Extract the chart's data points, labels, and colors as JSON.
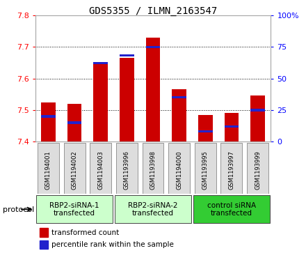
{
  "title": "GDS5355 / ILMN_2163547",
  "samples": [
    "GSM1194001",
    "GSM1194002",
    "GSM1194003",
    "GSM1193996",
    "GSM1193998",
    "GSM1194000",
    "GSM1193995",
    "GSM1193997",
    "GSM1193999"
  ],
  "transformed_count": [
    7.525,
    7.52,
    7.645,
    7.665,
    7.73,
    7.565,
    7.485,
    7.49,
    7.545
  ],
  "percentile_rank": [
    20,
    15,
    62,
    68,
    75,
    35,
    8,
    12,
    25
  ],
  "ylim_left": [
    7.4,
    7.8
  ],
  "ylim_right": [
    0,
    100
  ],
  "yticks_left": [
    7.4,
    7.5,
    7.6,
    7.7,
    7.8
  ],
  "yticks_right": [
    0,
    25,
    50,
    75,
    100
  ],
  "bar_color_red": "#cc0000",
  "bar_color_blue": "#2222cc",
  "groups": [
    {
      "label": "RBP2-siRNA-1\ntransfected",
      "start": 0,
      "end": 3,
      "color": "#ccffcc"
    },
    {
      "label": "RBP2-siRNA-2\ntransfected",
      "start": 3,
      "end": 6,
      "color": "#ccffcc"
    },
    {
      "label": "control siRNA\ntransfected",
      "start": 6,
      "end": 9,
      "color": "#33cc33"
    }
  ],
  "protocol_label": "protocol",
  "legend_items": [
    {
      "color": "#cc0000",
      "label": "transformed count"
    },
    {
      "color": "#2222cc",
      "label": "percentile rank within the sample"
    }
  ],
  "sample_box_color": "#dddddd",
  "plot_bg": "#ffffff",
  "fig_bg": "#ffffff"
}
